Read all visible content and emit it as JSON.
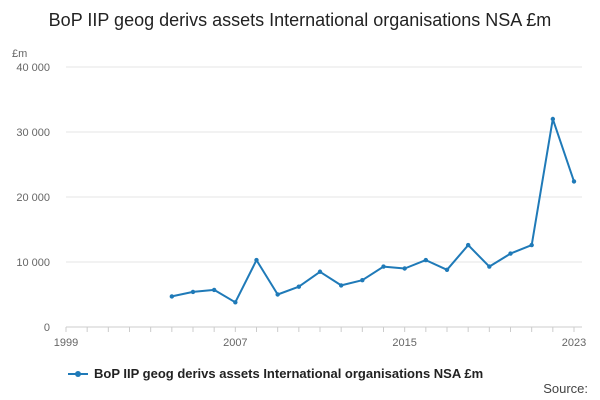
{
  "chart_data": {
    "type": "line",
    "title": "BoP IIP geog derivs assets International organisations NSA £m",
    "unit_label": "£m",
    "xlim": [
      1999,
      2023
    ],
    "ylim": [
      0,
      40000
    ],
    "x_ticks": [
      1999,
      2007,
      2015,
      2023
    ],
    "x_tick_labels": [
      "1999",
      "2007",
      "2015",
      "2023"
    ],
    "y_ticks": [
      0,
      10000,
      20000,
      30000,
      40000
    ],
    "y_tick_labels": [
      "0",
      "10 000",
      "20 000",
      "30 000",
      "40 000"
    ],
    "grid": true,
    "legend_position": "bottom-left",
    "series": [
      {
        "name": "BoP IIP geog derivs assets International organisations NSA £m",
        "color": "#1f7ab8",
        "x": [
          2004,
          2005,
          2006,
          2007,
          2008,
          2009,
          2010,
          2011,
          2012,
          2013,
          2014,
          2015,
          2016,
          2017,
          2018,
          2019,
          2020,
          2021,
          2022,
          2023
        ],
        "values": [
          4700,
          5400,
          5700,
          3800,
          10300,
          5000,
          6200,
          8500,
          6400,
          7200,
          9300,
          9000,
          10300,
          8800,
          12600,
          9300,
          11300,
          12600,
          32000,
          22400
        ]
      }
    ]
  },
  "source_label": "Source:"
}
